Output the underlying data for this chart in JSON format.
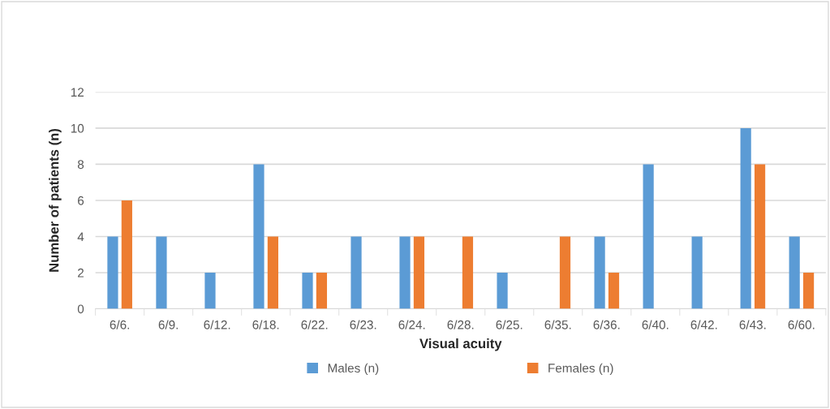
{
  "chart_data": {
    "type": "bar",
    "xlabel": "Visual acuity",
    "ylabel": "Number of patients (n)",
    "categories": [
      "6/6.",
      "6/9.",
      "6/12.",
      "6/18.",
      "6/22.",
      "6/23.",
      "6/24.",
      "6/28.",
      "6/25.",
      "6/35.",
      "6/36.",
      "6/40.",
      "6/42.",
      "6/43.",
      "6/60."
    ],
    "series": [
      {
        "name": "Males (n)",
        "color": "#5b9bd5",
        "values": [
          4,
          4,
          2,
          8,
          2,
          4,
          4,
          0,
          2,
          0,
          4,
          8,
          4,
          10,
          4
        ]
      },
      {
        "name": "Females (n)",
        "color": "#ed7d31",
        "values": [
          6,
          0,
          0,
          4,
          2,
          0,
          4,
          4,
          0,
          4,
          2,
          0,
          0,
          8,
          2
        ]
      }
    ],
    "ylim": [
      0,
      12
    ],
    "yticks": [
      0,
      2,
      4,
      6,
      8,
      10,
      12
    ],
    "grid": "y",
    "legend": "bottom"
  }
}
